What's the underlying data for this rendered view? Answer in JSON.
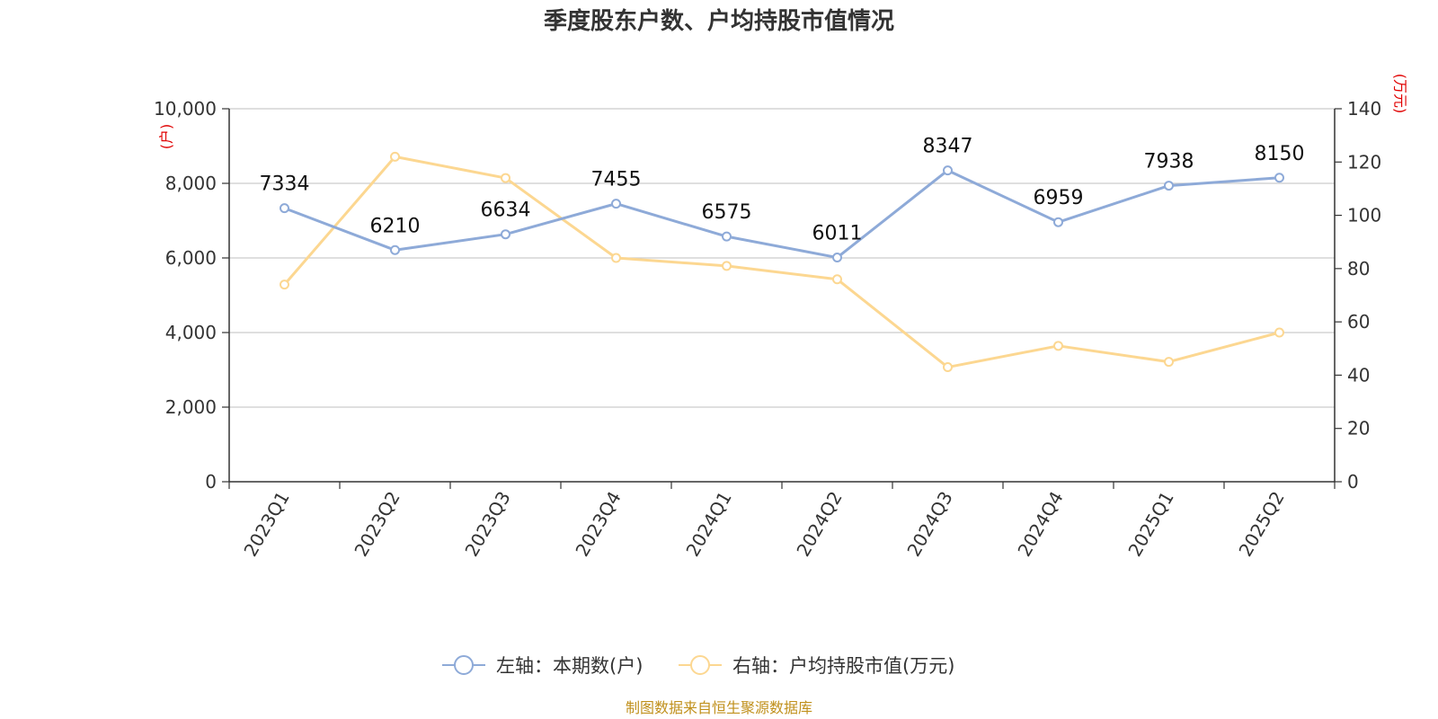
{
  "chart_data": {
    "type": "line",
    "title": "季度股东户数、户均持股市值情况",
    "categories": [
      "2023Q1",
      "2023Q2",
      "2023Q3",
      "2023Q4",
      "2024Q1",
      "2024Q2",
      "2024Q3",
      "2024Q4",
      "2025Q1",
      "2025Q2"
    ],
    "left_axis": {
      "unit": "(户)",
      "ylim": [
        0,
        10000
      ],
      "ticks": [
        0,
        2000,
        4000,
        6000,
        8000,
        10000
      ],
      "tick_labels": [
        "0",
        "2,000",
        "4,000",
        "6,000",
        "8,000",
        "10,000"
      ]
    },
    "right_axis": {
      "unit": "(万元)",
      "ylim": [
        0,
        140
      ],
      "ticks": [
        0,
        20,
        40,
        60,
        80,
        100,
        120,
        140
      ],
      "tick_labels": [
        "0",
        "20",
        "40",
        "60",
        "80",
        "100",
        "120",
        "140"
      ]
    },
    "series": [
      {
        "name": "左轴：本期数(户)",
        "axis": "left",
        "color": "#8eaad8",
        "values": [
          7334,
          6210,
          6634,
          7455,
          6575,
          6011,
          8347,
          6959,
          7938,
          8150
        ],
        "data_labels": [
          "7334",
          "6210",
          "6634",
          "7455",
          "6575",
          "6011",
          "8347",
          "6959",
          "7938",
          "8150"
        ]
      },
      {
        "name": "右轴：户均持股市值(万元)",
        "axis": "right",
        "color": "#fcd791",
        "values": [
          74,
          122,
          114,
          84,
          81,
          76,
          43,
          51,
          45,
          56
        ]
      }
    ],
    "grid": true,
    "legend_position": "bottom-center"
  },
  "source": "制图数据来自恒生聚源数据库"
}
